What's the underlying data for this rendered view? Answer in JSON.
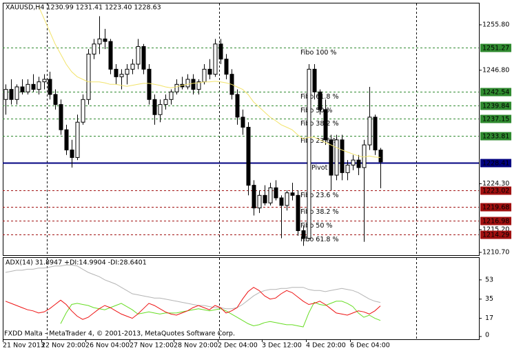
{
  "chart_data": [
    {
      "type": "candlestick",
      "title": "XAUUSD,H4 1230.99 1231.41 1223.40 1228.63",
      "categories": [
        "21 Nov 2013",
        null,
        null,
        null,
        null,
        null,
        null,
        "22 Nov 20:00",
        null,
        null,
        null,
        null,
        null,
        null,
        null,
        "26 Nov 04:00",
        null,
        null,
        null,
        null,
        null,
        null,
        null,
        "27 Nov 12:00",
        null,
        null,
        null,
        null,
        null,
        null,
        null,
        "28 Nov 20:00",
        null,
        null,
        null,
        null,
        null,
        null,
        null,
        "2 Dec 04:00",
        null,
        null,
        null,
        null,
        null,
        null,
        null,
        "3 Dec 12:00",
        null,
        null,
        null,
        null,
        null,
        null,
        null,
        "4 Dec 20:00",
        null,
        null,
        null,
        null,
        null,
        null,
        null,
        "6 Dec 04:00",
        null,
        null,
        null,
        null,
        null
      ],
      "open": [
        1241,
        1243,
        1241,
        1243.5,
        1242.5,
        1244,
        1243,
        1244.5,
        1245,
        1242,
        1240,
        1235,
        1231,
        1229.5,
        1236.5,
        1241,
        1250,
        1252,
        1253,
        1252.5,
        1247,
        1245.5,
        1246,
        1247,
        1248,
        1251.5,
        1247,
        1241,
        1238,
        1240,
        1241,
        1242.5,
        1244,
        1243.5,
        1245,
        1243,
        1244.5,
        1247,
        1246,
        1252,
        1249,
        1246,
        1242,
        1237.5,
        1235.5,
        1224,
        1219.5,
        1222,
        1220.5,
        1223.5,
        1221.5,
        1220,
        1222.5,
        1222,
        1215,
        1213.5,
        1247,
        1242.5,
        1239,
        1233,
        1226,
        1233,
        1226.5,
        1228,
        1229,
        1227.5,
        1232,
        1237.5,
        1230.99
      ],
      "high": [
        1244,
        1245,
        1244,
        1245,
        1245,
        1246,
        1245.5,
        1246,
        1246.5,
        1243,
        1241,
        1236,
        1233,
        1238,
        1242,
        1251,
        1253,
        1257.5,
        1255,
        1253,
        1248,
        1247,
        1248,
        1249,
        1253,
        1252,
        1248,
        1242,
        1241,
        1242,
        1243,
        1245,
        1245.5,
        1246,
        1246,
        1245,
        1248,
        1249,
        1253,
        1253,
        1250,
        1247,
        1243,
        1239,
        1236.5,
        1225,
        1223,
        1224,
        1224.5,
        1225,
        1222,
        1223,
        1224.5,
        1223,
        1216,
        1248,
        1248,
        1243,
        1241,
        1234,
        1234,
        1234,
        1229,
        1230,
        1230,
        1233,
        1243.5,
        1238,
        1231.41
      ],
      "low": [
        1238,
        1240,
        1240,
        1242,
        1242,
        1242.5,
        1242,
        1243,
        1241,
        1239,
        1234,
        1230,
        1227.5,
        1229,
        1236,
        1240,
        1249,
        1250,
        1251,
        1246,
        1244,
        1243,
        1244,
        1246,
        1247,
        1246,
        1240,
        1236,
        1236.5,
        1239,
        1240,
        1242,
        1243,
        1243,
        1242,
        1242,
        1244,
        1245,
        1245.5,
        1248,
        1245,
        1241,
        1236,
        1234,
        1222,
        1218,
        1218.5,
        1220,
        1220,
        1221,
        1213.5,
        1219,
        1221,
        1214,
        1212,
        1213,
        1241,
        1238,
        1232,
        1223,
        1225,
        1225,
        1225,
        1227,
        1226,
        1212.8,
        1231,
        1230,
        1223.4
      ],
      "close": [
        1243,
        1241,
        1243.5,
        1242.5,
        1244,
        1243,
        1244.5,
        1245,
        1242,
        1240,
        1235,
        1231,
        1229.5,
        1236.5,
        1241,
        1250,
        1252,
        1253,
        1252.5,
        1247,
        1245.5,
        1246,
        1247,
        1248,
        1251.5,
        1247,
        1241,
        1238,
        1240,
        1241,
        1242.5,
        1244,
        1243.5,
        1245,
        1243,
        1244.5,
        1247,
        1246,
        1252,
        1249,
        1246,
        1242,
        1237.5,
        1235.5,
        1224,
        1219.5,
        1222,
        1220.5,
        1223.5,
        1221.5,
        1220,
        1222.5,
        1222,
        1215,
        1213.5,
        1247,
        1242.5,
        1239,
        1233,
        1226,
        1233,
        1226.5,
        1228,
        1229,
        1227.5,
        1232,
        1237.5,
        1231,
        1228.63
      ],
      "up_color": "#ffffff",
      "down_color": "#000000",
      "ma_color": "#f2e36a",
      "ma_values": [
        null,
        null,
        null,
        null,
        null,
        null,
        1259.5,
        1257,
        1254.5,
        1252,
        1250,
        1248,
        1246.5,
        1245.5,
        1245,
        1244.5,
        1244.5,
        1244.5,
        1244.3,
        1244,
        1244,
        1243.8,
        1243.6,
        1243.8,
        1244,
        1244.2,
        1244.2,
        1244,
        1243.8,
        1243.5,
        1243.3,
        1243.5,
        1243.8,
        1244,
        1244.2,
        1244.3,
        1244.5,
        1244.5,
        1244.6,
        1244.5,
        1244.3,
        1244,
        1243.5,
        1243,
        1242,
        1240.5,
        1239.5,
        1238.5,
        1237.5,
        1236.8,
        1236,
        1235.5,
        1235,
        1234,
        1233.2,
        1233.5,
        1233.5,
        1233,
        1232.5,
        1232,
        1231.5,
        1231,
        1230.6,
        1230.2,
        1229.8,
        1229.6,
        1229.8,
        1229.6,
        1229.5
      ],
      "ylim": [
        1210.15,
        1260.17
      ],
      "yticks": [
        {
          "value": 1255.8,
          "label": "1255.80"
        },
        {
          "value": 1246.8,
          "label": "1246.80"
        },
        {
          "value": 1224.3,
          "label": "1224.30"
        },
        {
          "value": 1215.2,
          "label": "1215.20"
        },
        {
          "value": 1210.7,
          "label": "1210.70"
        }
      ],
      "levels": [
        {
          "label": "Fibo 100 %",
          "value": 1251.27,
          "color": "#2f8a2f"
        },
        {
          "label": "Fibo 61.8 %",
          "value": 1242.54,
          "color": "#2f8a2f"
        },
        {
          "label": "Fibo 50 %",
          "value": 1239.84,
          "color": "#2f8a2f"
        },
        {
          "label": "Fibo 38.2 %",
          "value": 1237.15,
          "color": "#2f8a2f"
        },
        {
          "label": "Fibo 23.6 %",
          "value": 1233.81,
          "color": "#2f8a2f"
        },
        {
          "label": "Pivot",
          "value": 1228.41,
          "color": "#000080"
        },
        {
          "label": "Fibo 23.6 %",
          "value": 1223.02,
          "color": "#a01010"
        },
        {
          "label": "Fibo 38.2 %",
          "value": 1219.68,
          "color": "#a01010"
        },
        {
          "label": "Fibo 50 %",
          "value": 1216.98,
          "color": "#a01010"
        },
        {
          "label": "Fibo 61.8 %",
          "value": 1214.29,
          "color": "#a01010"
        }
      ]
    },
    {
      "type": "line",
      "title": "ADX(14) 31.8947 +DI:14.9904 -DI:28.6401",
      "annotation": "FXDD Malta - MetaTrader 4, © 2001-2013, MetaQuotes Software Corp.",
      "series": [
        {
          "color": "#b4b4b4",
          "values": [
            60,
            61,
            62,
            62,
            63,
            63,
            64,
            64,
            65,
            66,
            66,
            67,
            67,
            66,
            63,
            60,
            58,
            56,
            53,
            51,
            49,
            46,
            43,
            40,
            39,
            38,
            37,
            36,
            36,
            35,
            34,
            33,
            32,
            31,
            30,
            29,
            29,
            28,
            27,
            27,
            26,
            26,
            27,
            30,
            34,
            38,
            41,
            43,
            44,
            44,
            45,
            45,
            46,
            46,
            46,
            44,
            43,
            43,
            42,
            43,
            44,
            45,
            44,
            43,
            41,
            38,
            35,
            33,
            31.8947
          ]
        },
        {
          "color": "#66dd22",
          "values": [
            null,
            null,
            null,
            null,
            null,
            null,
            null,
            null,
            null,
            null,
            12,
            22,
            30,
            31,
            30,
            29,
            27,
            26,
            25,
            27,
            29,
            31,
            28,
            25,
            21,
            22,
            23,
            22,
            21,
            22,
            22,
            22,
            23,
            24,
            25,
            26,
            25,
            24,
            25,
            26,
            24,
            21,
            18,
            15,
            12,
            10,
            11,
            13,
            14,
            13,
            12,
            11,
            11,
            10,
            9,
            22,
            32,
            30,
            29,
            31,
            33,
            33,
            31,
            28,
            22,
            18,
            20,
            17,
            14.9904
          ]
        },
        {
          "color": "#ee1111",
          "values": [
            33,
            31,
            29,
            27,
            25,
            24,
            22,
            23,
            26,
            30,
            34,
            30,
            24,
            19,
            16,
            18,
            22,
            26,
            29,
            27,
            24,
            21,
            19,
            17,
            21,
            26,
            31,
            29,
            26,
            23,
            21,
            20,
            22,
            24,
            27,
            29,
            27,
            25,
            29,
            27,
            22,
            24,
            27,
            35,
            42,
            46,
            43,
            38,
            35,
            36,
            40,
            43,
            41,
            37,
            33,
            30,
            31,
            33,
            30,
            26,
            22,
            21,
            20,
            22,
            24,
            23,
            21,
            24,
            28.6401
          ]
        }
      ],
      "ylim": [
        -2.6,
        74.2
      ],
      "yticks": [
        0,
        17,
        35,
        53
      ]
    }
  ]
}
